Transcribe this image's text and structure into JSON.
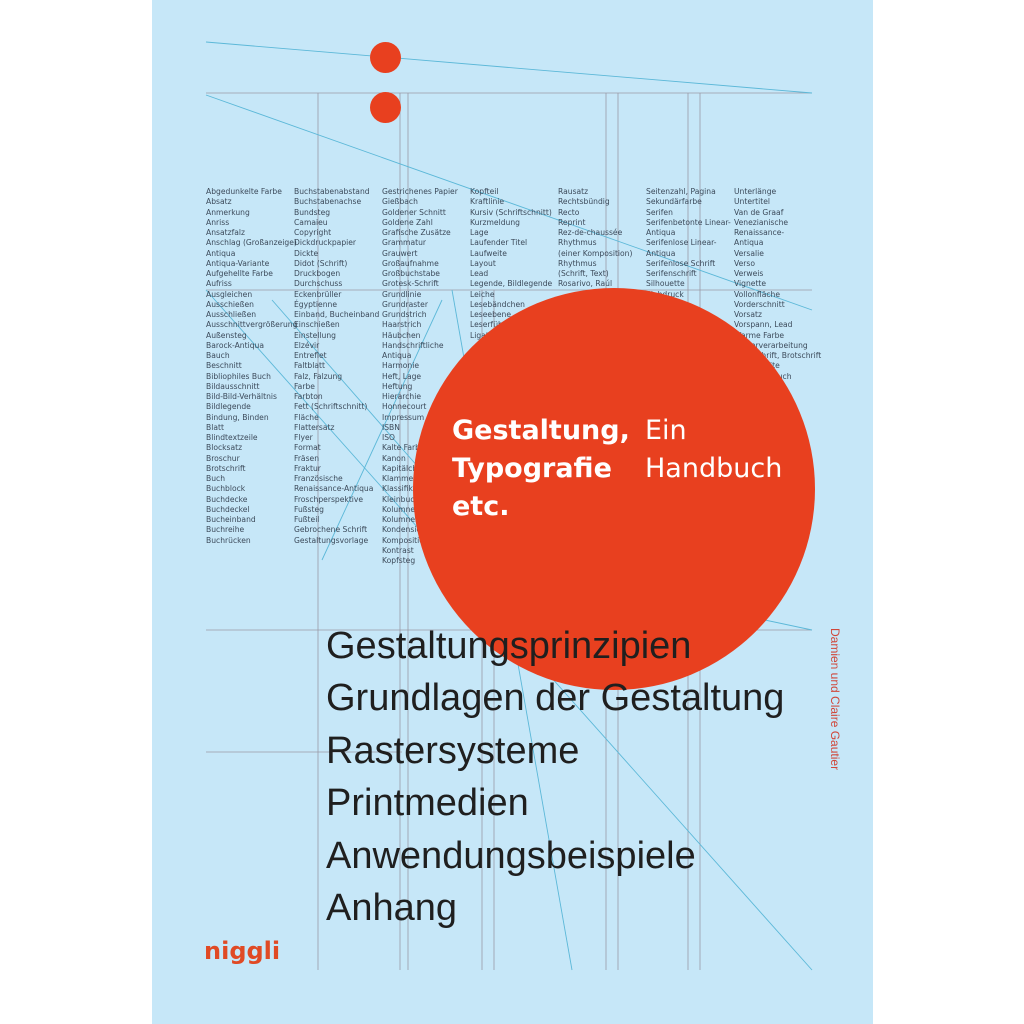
{
  "book": {
    "title_lines": [
      "Gestaltung,",
      "Typografie",
      "etc."
    ],
    "subtitle_lines": [
      "Ein",
      "Handbuch"
    ],
    "author": "Damien und Claire Gautier",
    "publisher": "niggli",
    "topics": [
      "Gestaltungsprinzipien",
      "Grundlagen der Gestaltung",
      "Rastersysteme",
      "Printmedien",
      "Anwendungsbeispiele",
      "Anhang"
    ]
  },
  "colors": {
    "background": "#c6e7f8",
    "accent": "#e8401f",
    "text": "#1f1f1f"
  },
  "glossary": {
    "col1": [
      "Abgedunkelte Farbe",
      "Absatz",
      "Anmerkung",
      "Anriss",
      "Ansatzfalz",
      "Anschlag (Großanzeige)",
      "Antiqua",
      "Antiqua-Variante",
      "Aufgehellte Farbe",
      "Aufriss",
      "Ausgleichen",
      "Ausschießen",
      "Ausschließen",
      "Ausschnittvergrößerung",
      "Außensteg",
      "Barock-Antiqua",
      "Bauch",
      "Beschnitt",
      "Bibliophiles Buch",
      "Bildausschnitt",
      "Bild-Bild-Verhältnis",
      "Bildlegende",
      "Bindung, Binden",
      "Blatt",
      "Blindtextzeile",
      "Blocksatz",
      "Broschur",
      "Brotschrift",
      "Buch",
      "Buchblock",
      "Buchdecke",
      "Buchdeckel",
      "Bucheinband",
      "Buchreihe",
      "Buchrücken"
    ],
    "col2": [
      "Buchstabenabstand",
      "Buchstabenachse",
      "Bundsteg",
      "Camaieu",
      "Copyright",
      "Dickdruckpapier",
      "Dickte",
      "Didot (Schrift)",
      "Druckbogen",
      "Durchschuss",
      "Eckenbrüller",
      "Égyptienne",
      "Einband, Bucheinband",
      "Einschießen",
      "Einstellung",
      "Elzévir",
      "Entreflet",
      "Faltblatt",
      "Falz, Falzung",
      "Farbe",
      "Farbton",
      "Fett (Schriftschnitt)",
      "Fläche",
      "Flattersatz",
      "Flyer",
      "Format",
      "Fräsen",
      "Fraktur",
      "Französische",
      "Renaissance-Antiqua",
      "Froschperspektive",
      "Fußsteg",
      "Fußteil",
      "Gebrochene Schrift",
      "Gestaltungsvorlage"
    ],
    "col3": [
      "Gestrichenes Papier",
      "Gießbach",
      "Goldener Schnitt",
      "Goldene Zahl",
      "Grafische Zusätze",
      "Grammatur",
      "Grauwert",
      "Großaufnahme",
      "Großbuchstabe",
      "Grotesk-Schrift",
      "Grundlinie",
      "Grundraster",
      "Grundstrich",
      "Haarstrich",
      "Häubchen",
      "Handschriftliche",
      "Antiqua",
      "Harmonie",
      "Heft, Lage",
      "Heftung",
      "Hierarchie",
      "Honnecourt",
      "Impressum",
      "ISBN",
      "ISO",
      "Kalte Farbe",
      "Kanon",
      "Kapitälchen",
      "Klammer",
      "Klassifikation",
      "Kleinbuchstabe",
      "Kolumne",
      "Kolumnentitel",
      "Kondensiert",
      "Komposition",
      "Kontrast",
      "Kopfsteg"
    ],
    "col4": [
      "Kopfteil",
      "Kraftlinie",
      "Kursiv (Schriftschnitt)",
      "Kurzmeldung",
      "Lage",
      "Laufender Titel",
      "Laufweite",
      "Layout",
      "Lead",
      "Legende, Bildlegende",
      "Leiche",
      "Lesebändchen",
      "Leseebene",
      "Leserführung",
      "Ligatur"
    ],
    "col5": [
      "Rausatz",
      "Rechtsbündig",
      "Recto",
      "Reprint",
      "Rez-de-chaussée",
      "Rhythmus",
      "(einer Komposition)",
      "Rhythmus",
      "(Schrift, Text)",
      "Rosarivo, Raúl"
    ],
    "col6": [
      "Seitenzahl, Pagina",
      "Sekundärfarbe",
      "Serifen",
      "Serifenbetonte Linear-",
      "Antiqua",
      "Serifenlose Linear-",
      "Antiqua",
      "Serifenlose Schrift",
      "Serifenschrift",
      "Silhouette",
      "Siebdruck"
    ],
    "col7": [
      "Unterlänge",
      "Untertitel",
      "Van de Graaf",
      "Venezianische",
      "Renaissance-",
      "Antiqua",
      "Versalie",
      "Verso",
      "Verweis",
      "Vignette",
      "Vollonfläche",
      "Vorderschnitt",
      "Vorsatz",
      "Vorspann, Lead",
      "Warme Farbe",
      "Weiterverarbeitung",
      "Werkschrift, Brotschrift",
      "Zeilenbreite",
      "Zeilenumbruch"
    ]
  }
}
